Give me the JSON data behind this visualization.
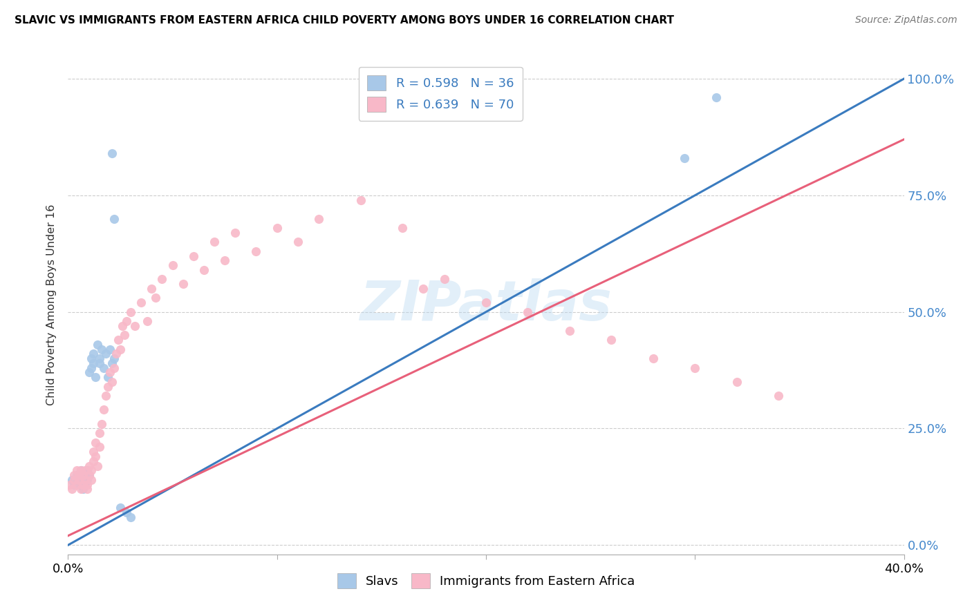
{
  "title": "SLAVIC VS IMMIGRANTS FROM EASTERN AFRICA CHILD POVERTY AMONG BOYS UNDER 16 CORRELATION CHART",
  "source": "Source: ZipAtlas.com",
  "ylabel": "Child Poverty Among Boys Under 16",
  "xlim": [
    0.0,
    0.4
  ],
  "ylim": [
    -0.02,
    1.05
  ],
  "ytick_positions": [
    0.0,
    0.25,
    0.5,
    0.75,
    1.0
  ],
  "ytick_labels": [
    "0.0%",
    "25.0%",
    "50.0%",
    "75.0%",
    "100.0%"
  ],
  "xtick_positions": [
    0.0,
    0.1,
    0.2,
    0.3,
    0.4
  ],
  "xtick_labels": [
    "0.0%",
    "",
    "",
    "",
    "40.0%"
  ],
  "blue_fill_color": "#a8c8e8",
  "pink_fill_color": "#f8b8c8",
  "blue_line_color": "#3a7bbf",
  "pink_line_color": "#e8607a",
  "right_axis_color": "#4488cc",
  "legend_R_blue": "R = 0.598",
  "legend_N_blue": "N = 36",
  "legend_R_pink": "R = 0.639",
  "legend_N_pink": "N = 70",
  "watermark": "ZIPatlas",
  "blue_line_x": [
    0.0,
    0.4
  ],
  "blue_line_y": [
    0.0,
    1.0
  ],
  "pink_line_x": [
    0.0,
    0.4
  ],
  "pink_line_y": [
    0.02,
    0.87
  ],
  "slavs_x": [
    0.002,
    0.003,
    0.004,
    0.005,
    0.006,
    0.006,
    0.007,
    0.007,
    0.008,
    0.008,
    0.009,
    0.009,
    0.01,
    0.01,
    0.011,
    0.011,
    0.012,
    0.012,
    0.013,
    0.014,
    0.015,
    0.015,
    0.016,
    0.017,
    0.018,
    0.019,
    0.02,
    0.021,
    0.022,
    0.025,
    0.028,
    0.03,
    0.021,
    0.022,
    0.31,
    0.295
  ],
  "slavs_y": [
    0.14,
    0.13,
    0.15,
    0.14,
    0.13,
    0.16,
    0.14,
    0.12,
    0.15,
    0.13,
    0.14,
    0.16,
    0.15,
    0.37,
    0.4,
    0.38,
    0.41,
    0.39,
    0.36,
    0.43,
    0.4,
    0.39,
    0.42,
    0.38,
    0.41,
    0.36,
    0.42,
    0.39,
    0.4,
    0.08,
    0.07,
    0.06,
    0.84,
    0.7,
    0.96,
    0.83
  ],
  "ea_x": [
    0.001,
    0.002,
    0.003,
    0.003,
    0.004,
    0.004,
    0.005,
    0.005,
    0.006,
    0.006,
    0.007,
    0.007,
    0.008,
    0.008,
    0.009,
    0.009,
    0.01,
    0.01,
    0.011,
    0.011,
    0.012,
    0.012,
    0.013,
    0.013,
    0.014,
    0.015,
    0.015,
    0.016,
    0.017,
    0.018,
    0.019,
    0.02,
    0.021,
    0.022,
    0.023,
    0.024,
    0.025,
    0.026,
    0.027,
    0.028,
    0.03,
    0.032,
    0.035,
    0.038,
    0.04,
    0.042,
    0.045,
    0.05,
    0.055,
    0.06,
    0.065,
    0.07,
    0.075,
    0.08,
    0.09,
    0.1,
    0.11,
    0.12,
    0.14,
    0.16,
    0.17,
    0.18,
    0.2,
    0.22,
    0.24,
    0.26,
    0.28,
    0.3,
    0.32,
    0.34
  ],
  "ea_y": [
    0.13,
    0.12,
    0.14,
    0.15,
    0.13,
    0.16,
    0.15,
    0.14,
    0.12,
    0.16,
    0.15,
    0.13,
    0.14,
    0.16,
    0.13,
    0.12,
    0.15,
    0.17,
    0.14,
    0.16,
    0.18,
    0.2,
    0.22,
    0.19,
    0.17,
    0.21,
    0.24,
    0.26,
    0.29,
    0.32,
    0.34,
    0.37,
    0.35,
    0.38,
    0.41,
    0.44,
    0.42,
    0.47,
    0.45,
    0.48,
    0.5,
    0.47,
    0.52,
    0.48,
    0.55,
    0.53,
    0.57,
    0.6,
    0.56,
    0.62,
    0.59,
    0.65,
    0.61,
    0.67,
    0.63,
    0.68,
    0.65,
    0.7,
    0.74,
    0.68,
    0.55,
    0.57,
    0.52,
    0.5,
    0.46,
    0.44,
    0.4,
    0.38,
    0.35,
    0.32
  ]
}
